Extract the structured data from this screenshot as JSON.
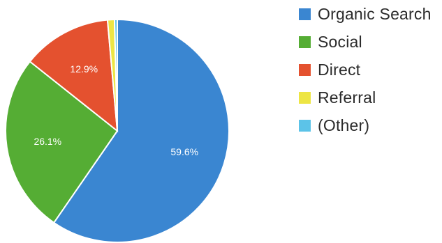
{
  "chart_data": {
    "type": "pie",
    "slices": [
      {
        "label": "Organic Search",
        "value": 59.6,
        "display": "59.6%",
        "color": "#3a86d1"
      },
      {
        "label": "Social",
        "value": 26.1,
        "display": "26.1%",
        "color": "#55ad34"
      },
      {
        "label": "Direct",
        "value": 12.9,
        "display": "12.9%",
        "color": "#e4512f"
      },
      {
        "label": "Referral",
        "value": 1.0,
        "display": "",
        "color": "#ede544"
      },
      {
        "label": "(Other)",
        "value": 0.4,
        "display": "",
        "color": "#5cc3e8"
      }
    ],
    "legend_position": "right"
  }
}
